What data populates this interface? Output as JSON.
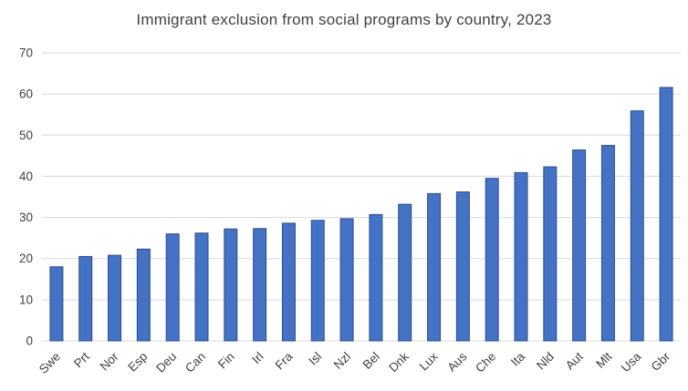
{
  "chart_data": {
    "type": "bar",
    "title": "Immigrant exclusion from social programs by country, 2023",
    "categories": [
      "Swe",
      "Prt",
      "Nor",
      "Esp",
      "Deu",
      "Can",
      "Fin",
      "Irl",
      "Fra",
      "Isl",
      "Nzl",
      "Bel",
      "Dnk",
      "Lux",
      "Aus",
      "Che",
      "Ita",
      "Nld",
      "Aut",
      "Mlt",
      "Usa",
      "Gbr"
    ],
    "values": [
      18,
      20.5,
      20.8,
      22.3,
      26,
      26.2,
      27.2,
      27.3,
      28.6,
      29.3,
      29.7,
      30.7,
      33.2,
      35.8,
      36.2,
      39.5,
      40.9,
      42.3,
      46.4,
      47.5,
      55.9,
      61.6
    ],
    "xlabel": "",
    "ylabel": "",
    "ylim": [
      0,
      70
    ],
    "ytick_step": 10,
    "grid": true,
    "legend": "none",
    "colors": {
      "bar_fill": "#4472c4",
      "bar_stroke": "#2e4d8c",
      "gridline": "#d9d9d9",
      "text": "#404040"
    }
  }
}
